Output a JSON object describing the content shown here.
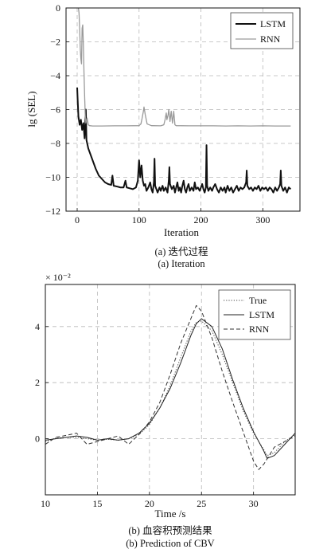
{
  "chart_data": [
    {
      "id": "a",
      "type": "line",
      "xlabel": "Iteration",
      "ylabel": "lg (SEL)",
      "xlim": [
        -18,
        360
      ],
      "ylim": [
        -12,
        0
      ],
      "xticks": [
        0,
        100,
        200,
        300
      ],
      "yticks": [
        0,
        -2,
        -4,
        -6,
        -8,
        -10,
        -12
      ],
      "grid": true,
      "legend": "top-right",
      "caption_cn": "(a) 迭代过程",
      "caption_en": "(a) Iteration",
      "series": [
        {
          "name": "LSTM",
          "color": "#111111",
          "width": 2.0,
          "dash": "",
          "points": [
            [
              0,
              -4.7
            ],
            [
              1,
              -5.6
            ],
            [
              2,
              -6.4
            ],
            [
              4,
              -6.9
            ],
            [
              6,
              -6.6
            ],
            [
              8,
              -7.2
            ],
            [
              10,
              -6.8
            ],
            [
              12,
              -7.7
            ],
            [
              14,
              -6.0
            ],
            [
              15,
              -7.8
            ],
            [
              18,
              -8.3
            ],
            [
              20,
              -8.5
            ],
            [
              25,
              -9.0
            ],
            [
              30,
              -9.5
            ],
            [
              35,
              -9.9
            ],
            [
              40,
              -10.1
            ],
            [
              45,
              -10.3
            ],
            [
              50,
              -10.4
            ],
            [
              55,
              -10.45
            ],
            [
              57,
              -9.9
            ],
            [
              59,
              -10.5
            ],
            [
              65,
              -10.55
            ],
            [
              70,
              -10.6
            ],
            [
              75,
              -10.6
            ],
            [
              78,
              -10.2
            ],
            [
              80,
              -10.6
            ],
            [
              85,
              -10.65
            ],
            [
              90,
              -10.7
            ],
            [
              95,
              -10.6
            ],
            [
              98,
              -10.2
            ],
            [
              100,
              -9.0
            ],
            [
              102,
              -10.0
            ],
            [
              104,
              -9.3
            ],
            [
              106,
              -10.2
            ],
            [
              108,
              -10.5
            ],
            [
              110,
              -10.4
            ],
            [
              112,
              -10.8
            ],
            [
              115,
              -10.6
            ],
            [
              118,
              -10.3
            ],
            [
              120,
              -10.7
            ],
            [
              122,
              -10.9
            ],
            [
              124,
              -10.3
            ],
            [
              125,
              -8.9
            ],
            [
              126,
              -10.5
            ],
            [
              128,
              -10.7
            ],
            [
              130,
              -10.9
            ],
            [
              133,
              -10.6
            ],
            [
              135,
              -10.8
            ],
            [
              138,
              -10.5
            ],
            [
              140,
              -10.8
            ],
            [
              143,
              -10.6
            ],
            [
              146,
              -10.9
            ],
            [
              148,
              -10.2
            ],
            [
              149,
              -9.4
            ],
            [
              150,
              -10.4
            ],
            [
              153,
              -10.7
            ],
            [
              156,
              -10.5
            ],
            [
              158,
              -10.9
            ],
            [
              160,
              -10.6
            ],
            [
              162,
              -10.3
            ],
            [
              164,
              -10.8
            ],
            [
              166,
              -10.6
            ],
            [
              168,
              -10.9
            ],
            [
              170,
              -10.5
            ],
            [
              172,
              -10.2
            ],
            [
              174,
              -10.7
            ],
            [
              176,
              -10.9
            ],
            [
              178,
              -10.6
            ],
            [
              180,
              -10.4
            ],
            [
              182,
              -10.8
            ],
            [
              185,
              -10.6
            ],
            [
              188,
              -10.8
            ],
            [
              190,
              -10.3
            ],
            [
              192,
              -10.7
            ],
            [
              195,
              -10.6
            ],
            [
              198,
              -10.8
            ],
            [
              200,
              -10.6
            ],
            [
              202,
              -10.4
            ],
            [
              204,
              -10.7
            ],
            [
              206,
              -10.9
            ],
            [
              208,
              -10.6
            ],
            [
              209,
              -8.1
            ],
            [
              210,
              -10.5
            ],
            [
              212,
              -10.8
            ],
            [
              215,
              -10.6
            ],
            [
              218,
              -10.8
            ],
            [
              220,
              -10.6
            ],
            [
              223,
              -10.4
            ],
            [
              226,
              -10.7
            ],
            [
              229,
              -10.9
            ],
            [
              232,
              -10.6
            ],
            [
              235,
              -10.8
            ],
            [
              238,
              -10.6
            ],
            [
              240,
              -10.9
            ],
            [
              243,
              -10.5
            ],
            [
              246,
              -10.8
            ],
            [
              249,
              -10.6
            ],
            [
              252,
              -10.9
            ],
            [
              255,
              -10.7
            ],
            [
              258,
              -10.5
            ],
            [
              261,
              -10.8
            ],
            [
              264,
              -10.6
            ],
            [
              267,
              -10.7
            ],
            [
              270,
              -10.6
            ],
            [
              273,
              -10.3
            ],
            [
              274,
              -9.6
            ],
            [
              275,
              -10.5
            ],
            [
              278,
              -10.7
            ],
            [
              281,
              -10.6
            ],
            [
              284,
              -10.8
            ],
            [
              287,
              -10.6
            ],
            [
              290,
              -10.7
            ],
            [
              293,
              -10.5
            ],
            [
              296,
              -10.8
            ],
            [
              299,
              -10.6
            ],
            [
              302,
              -10.7
            ],
            [
              305,
              -10.6
            ],
            [
              308,
              -10.8
            ],
            [
              311,
              -10.6
            ],
            [
              314,
              -10.7
            ],
            [
              317,
              -10.9
            ],
            [
              320,
              -10.6
            ],
            [
              323,
              -10.8
            ],
            [
              326,
              -10.6
            ],
            [
              328,
              -10.4
            ],
            [
              329,
              -9.6
            ],
            [
              330,
              -10.5
            ],
            [
              333,
              -10.8
            ],
            [
              336,
              -10.6
            ],
            [
              339,
              -10.9
            ],
            [
              342,
              -10.6
            ],
            [
              345,
              -10.7
            ]
          ]
        },
        {
          "name": "RNN",
          "color": "#9a9a9a",
          "width": 1.3,
          "dash": "",
          "points": [
            [
              2,
              0
            ],
            [
              3,
              -0.3
            ],
            [
              4,
              -1.2
            ],
            [
              5,
              -2.4
            ],
            [
              6,
              -3.0
            ],
            [
              7,
              -3.3
            ],
            [
              8,
              -1.2
            ],
            [
              9,
              -1.0
            ],
            [
              10,
              -2.2
            ],
            [
              11,
              -3.8
            ],
            [
              12,
              -5.1
            ],
            [
              13,
              -6.3
            ],
            [
              14,
              -6.8
            ],
            [
              16,
              -6.5
            ],
            [
              18,
              -6.9
            ],
            [
              20,
              -6.95
            ],
            [
              25,
              -6.97
            ],
            [
              40,
              -6.97
            ],
            [
              60,
              -6.96
            ],
            [
              80,
              -6.96
            ],
            [
              100,
              -6.95
            ],
            [
              103,
              -6.85
            ],
            [
              105,
              -6.5
            ],
            [
              107,
              -6.1
            ],
            [
              108,
              -5.85
            ],
            [
              110,
              -6.3
            ],
            [
              113,
              -6.85
            ],
            [
              120,
              -6.95
            ],
            [
              135,
              -6.96
            ],
            [
              140,
              -6.9
            ],
            [
              142,
              -6.6
            ],
            [
              144,
              -6.2
            ],
            [
              145,
              -6.6
            ],
            [
              147,
              -6.3
            ],
            [
              148,
              -6.0
            ],
            [
              150,
              -6.7
            ],
            [
              152,
              -6.1
            ],
            [
              154,
              -6.8
            ],
            [
              156,
              -6.1
            ],
            [
              158,
              -6.9
            ],
            [
              160,
              -6.95
            ],
            [
              180,
              -6.96
            ],
            [
              200,
              -6.96
            ],
            [
              220,
              -6.96
            ],
            [
              240,
              -6.97
            ],
            [
              260,
              -6.96
            ],
            [
              280,
              -6.97
            ],
            [
              300,
              -6.96
            ],
            [
              320,
              -6.97
            ],
            [
              345,
              -6.97
            ]
          ]
        }
      ]
    },
    {
      "id": "b",
      "type": "line",
      "xlabel": "Time /s",
      "ylabel": "",
      "scale_note": "× 10⁻²",
      "xlim": [
        10,
        34
      ],
      "ylim": [
        -2,
        5.5
      ],
      "xticks": [
        10,
        15,
        20,
        25,
        30
      ],
      "yticks": [
        0,
        2,
        4
      ],
      "grid": true,
      "legend": "top-right",
      "caption_cn": "(b) 血容积预测结果",
      "caption_en": "(b) Prediction of CBV",
      "series": [
        {
          "name": "True",
          "color": "#444444",
          "width": 1.0,
          "dash": "1.2,2",
          "points": [
            [
              10,
              -0.1
            ],
            [
              11,
              0.02
            ],
            [
              12,
              0.05
            ],
            [
              13,
              0.05
            ],
            [
              14,
              0.0
            ],
            [
              15,
              -0.05
            ],
            [
              16,
              -0.02
            ],
            [
              17,
              -0.05
            ],
            [
              18,
              0.0
            ],
            [
              19,
              0.15
            ],
            [
              20,
              0.5
            ],
            [
              21,
              1.1
            ],
            [
              22,
              1.9
            ],
            [
              23,
              2.9
            ],
            [
              24,
              3.85
            ],
            [
              24.5,
              4.15
            ],
            [
              25,
              4.2
            ],
            [
              26,
              3.85
            ],
            [
              27,
              3.0
            ],
            [
              28,
              2.0
            ],
            [
              29,
              1.0
            ],
            [
              30,
              0.2
            ],
            [
              31,
              -0.4
            ],
            [
              31.3,
              -0.6
            ],
            [
              32,
              -0.5
            ],
            [
              33,
              -0.1
            ],
            [
              34,
              0.15
            ]
          ]
        },
        {
          "name": "LSTM",
          "color": "#222222",
          "width": 1.0,
          "dash": "",
          "points": [
            [
              10,
              -0.05
            ],
            [
              11,
              0.0
            ],
            [
              12,
              0.05
            ],
            [
              13,
              0.1
            ],
            [
              14,
              0.05
            ],
            [
              15,
              -0.05
            ],
            [
              16,
              0.0
            ],
            [
              17,
              -0.05
            ],
            [
              18,
              0.0
            ],
            [
              19,
              0.2
            ],
            [
              20,
              0.55
            ],
            [
              21,
              1.1
            ],
            [
              22,
              1.8
            ],
            [
              23,
              2.7
            ],
            [
              24,
              3.7
            ],
            [
              24.5,
              4.1
            ],
            [
              25,
              4.28
            ],
            [
              26,
              4.0
            ],
            [
              27,
              3.2
            ],
            [
              28,
              2.1
            ],
            [
              29,
              1.1
            ],
            [
              30,
              0.25
            ],
            [
              31,
              -0.45
            ],
            [
              31.3,
              -0.7
            ],
            [
              32,
              -0.6
            ],
            [
              33,
              -0.2
            ],
            [
              34,
              0.2
            ]
          ]
        },
        {
          "name": "RNN",
          "color": "#333333",
          "width": 1.0,
          "dash": "5,3",
          "points": [
            [
              10,
              -0.2
            ],
            [
              11,
              0.05
            ],
            [
              12,
              0.12
            ],
            [
              13,
              0.2
            ],
            [
              14,
              -0.2
            ],
            [
              15,
              -0.1
            ],
            [
              16,
              0.0
            ],
            [
              17,
              0.1
            ],
            [
              18,
              -0.2
            ],
            [
              19,
              0.15
            ],
            [
              20,
              0.6
            ],
            [
              21,
              1.3
            ],
            [
              22,
              2.3
            ],
            [
              23,
              3.4
            ],
            [
              24,
              4.3
            ],
            [
              24.5,
              4.75
            ],
            [
              25,
              4.55
            ],
            [
              26,
              3.6
            ],
            [
              27,
              2.4
            ],
            [
              28,
              1.3
            ],
            [
              29,
              0.25
            ],
            [
              30,
              -0.8
            ],
            [
              30.5,
              -1.1
            ],
            [
              31,
              -0.9
            ],
            [
              32,
              -0.3
            ],
            [
              33,
              -0.1
            ],
            [
              34,
              0.1
            ]
          ]
        }
      ]
    }
  ]
}
